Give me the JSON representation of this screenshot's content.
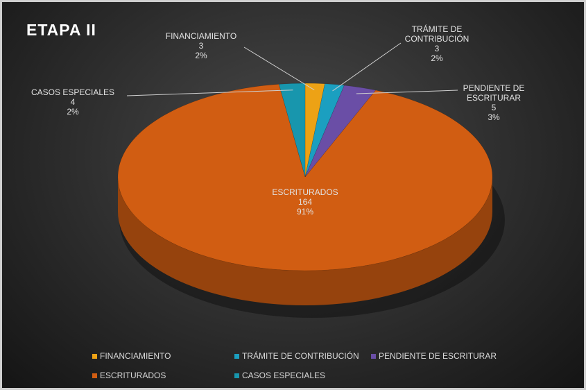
{
  "chart_data": {
    "type": "pie3d",
    "title": "ETAPA II",
    "categories": [
      "FINANCIAMIENTO",
      "TRÁMITE DE CONTRIBUCIÓN",
      "PENDIENTE DE ESCRITURAR",
      "ESCRITURADOS",
      "CASOS ESPECIALES"
    ],
    "values": [
      3,
      3,
      5,
      164,
      4
    ],
    "percent_labels": [
      "2%",
      "2%",
      "3%",
      "91%",
      "2%"
    ],
    "colors": [
      "#eda215",
      "#1b9fc0",
      "#6a4ea6",
      "#d15d12",
      "#1896ad"
    ],
    "legend": "bottom"
  }
}
